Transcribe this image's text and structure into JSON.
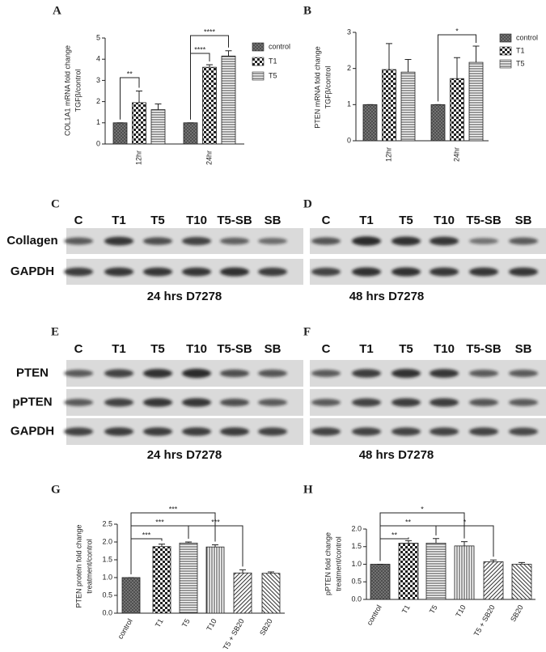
{
  "chart_data": [
    {
      "panel": "A",
      "type": "bar",
      "ylabel": [
        "COL1A1 mRNA fold change",
        "TGFβ/control"
      ],
      "categories": [
        "12hr",
        "24hr"
      ],
      "series": [
        {
          "name": "control",
          "values": [
            1,
            1
          ],
          "errors": [
            0,
            0
          ]
        },
        {
          "name": "T1",
          "values": [
            1.95,
            3.62
          ],
          "errors": [
            0.55,
            0.12
          ]
        },
        {
          "name": "T5",
          "values": [
            1.62,
            4.15
          ],
          "errors": [
            0.27,
            0.25
          ]
        }
      ],
      "ylim": [
        0,
        5
      ],
      "yticks": [
        0,
        1,
        2,
        3,
        4,
        5
      ],
      "annotations": [
        "**",
        "****",
        "****"
      ]
    },
    {
      "panel": "B",
      "type": "bar",
      "ylabel": [
        "PTEN mRNA fold change",
        "TGFβ/control"
      ],
      "categories": [
        "12hr",
        "24hr"
      ],
      "series": [
        {
          "name": "control",
          "values": [
            1,
            1
          ],
          "errors": [
            0,
            0
          ]
        },
        {
          "name": "T1",
          "values": [
            1.97,
            1.72
          ],
          "errors": [
            0.72,
            0.58
          ]
        },
        {
          "name": "T5",
          "values": [
            1.9,
            2.17
          ],
          "errors": [
            0.35,
            0.45
          ]
        }
      ],
      "ylim": [
        0,
        3
      ],
      "yticks": [
        0,
        1,
        2,
        3
      ],
      "annotations": [
        "*"
      ]
    },
    {
      "panel": "G",
      "type": "bar",
      "ylabel": [
        "PTEN protein fold change",
        "treatment/control"
      ],
      "categories": [
        "control",
        "T1",
        "T5",
        "T10",
        "T5 + SB20",
        "SB20"
      ],
      "values": [
        1,
        1.87,
        1.97,
        1.86,
        1.13,
        1.12
      ],
      "errors": [
        0,
        0.07,
        0.03,
        0.06,
        0.09,
        0.04
      ],
      "ylim": [
        0,
        2.5
      ],
      "yticks": [
        {
          "value": 0,
          "label": "0.0"
        },
        0.5,
        {
          "value": 1,
          "label": "1.0"
        },
        1.5,
        {
          "value": 2,
          "label": "2.0"
        },
        2.5
      ],
      "annotations": [
        "***",
        "***",
        "***",
        "***"
      ]
    },
    {
      "panel": "H",
      "type": "bar",
      "ylabel": [
        "pPTEN fold change",
        "treatment/control"
      ],
      "categories": [
        "control",
        "T1",
        "T5",
        "T10",
        "T5 + SB20",
        "SB20"
      ],
      "values": [
        1,
        1.6,
        1.6,
        1.52,
        1.07,
        1.0
      ],
      "errors": [
        0,
        0.07,
        0.13,
        0.12,
        0.05,
        0.05
      ],
      "ylim": [
        0,
        2
      ],
      "yticks": [
        {
          "value": 0,
          "label": "0.0"
        },
        0.5,
        {
          "value": 1,
          "label": "1.0"
        },
        1.5,
        {
          "value": 2,
          "label": "2.0"
        }
      ],
      "annotations": [
        "**",
        "**",
        "*",
        "*"
      ]
    }
  ],
  "blots": [
    {
      "panel": "C",
      "lanes": [
        "C",
        "T1",
        "T5",
        "T10",
        "T5-SB",
        "SB"
      ],
      "rows": [
        "Collagen",
        "GAPDH"
      ],
      "caption": "24 hrs D7278"
    },
    {
      "panel": "D",
      "lanes": [
        "C",
        "T1",
        "T5",
        "T10",
        "T5-SB",
        "SB"
      ],
      "caption": "48 hrs D7278"
    },
    {
      "panel": "E",
      "lanes": [
        "C",
        "T1",
        "T5",
        "T10",
        "T5-SB",
        "SB"
      ],
      "rows": [
        "PTEN",
        "pPTEN",
        "GAPDH"
      ],
      "caption": "24 hrs D7278"
    },
    {
      "panel": "F",
      "lanes": [
        "C",
        "T1",
        "T5",
        "T10",
        "T5-SB",
        "SB"
      ],
      "caption": "48 hrs D7278"
    }
  ]
}
